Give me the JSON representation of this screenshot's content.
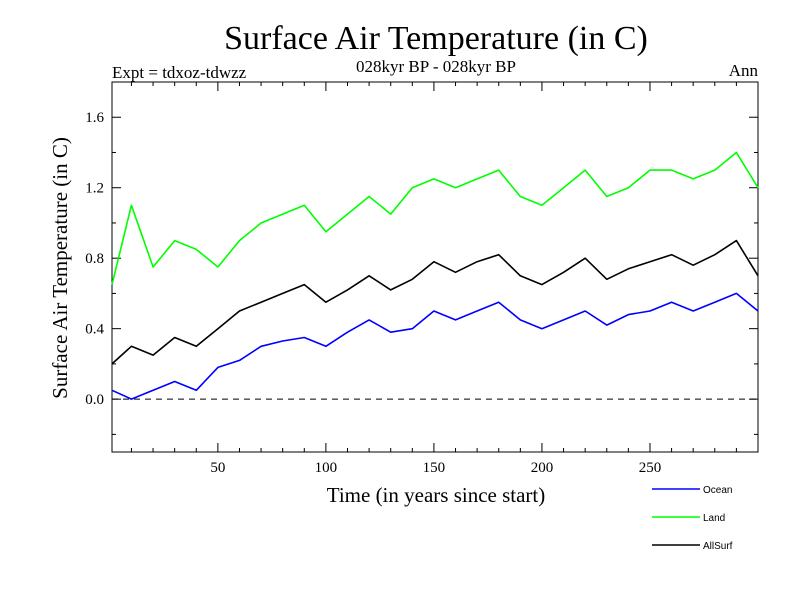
{
  "chart_data": {
    "type": "line",
    "title": "Surface Air Temperature (in C)",
    "experiment_label": "Expt = tdxoz-tdwzz",
    "period_label": "028kyr BP - 028kyr BP",
    "season_label": "Ann",
    "xlabel": "Time (in years since start)",
    "ylabel": "Surface Air Temperature (in C)",
    "xlim": [
      1,
      300
    ],
    "ylim": [
      -0.3,
      1.8
    ],
    "x_ticks": [
      50,
      100,
      150,
      200,
      250
    ],
    "y_ticks": [
      0.0,
      0.4,
      0.8,
      1.2,
      1.6
    ],
    "y_tick_labels": [
      "0.0",
      "0.4",
      "0.8",
      "1.2",
      "1.6"
    ],
    "zero_line": 0.0,
    "x": [
      1,
      10,
      20,
      30,
      40,
      50,
      60,
      70,
      80,
      90,
      100,
      110,
      120,
      130,
      140,
      150,
      160,
      170,
      180,
      190,
      200,
      210,
      220,
      230,
      240,
      250,
      260,
      270,
      280,
      290,
      300
    ],
    "series": [
      {
        "name": "Ocean",
        "color": "#0000ff",
        "values": [
          0.05,
          0.0,
          0.05,
          0.1,
          0.05,
          0.18,
          0.22,
          0.3,
          0.33,
          0.35,
          0.3,
          0.38,
          0.45,
          0.38,
          0.4,
          0.5,
          0.45,
          0.5,
          0.55,
          0.45,
          0.4,
          0.45,
          0.5,
          0.42,
          0.48,
          0.5,
          0.55,
          0.5,
          0.55,
          0.6,
          0.5
        ]
      },
      {
        "name": "Land",
        "color": "#00ff00",
        "values": [
          0.65,
          1.1,
          0.75,
          0.9,
          0.85,
          0.75,
          0.9,
          1.0,
          1.05,
          1.1,
          0.95,
          1.05,
          1.15,
          1.05,
          1.2,
          1.25,
          1.2,
          1.25,
          1.3,
          1.15,
          1.1,
          1.2,
          1.3,
          1.15,
          1.2,
          1.3,
          1.3,
          1.25,
          1.3,
          1.4,
          1.2
        ]
      },
      {
        "name": "AllSurf",
        "color": "#000000",
        "values": [
          0.2,
          0.3,
          0.25,
          0.35,
          0.3,
          0.4,
          0.5,
          0.55,
          0.6,
          0.65,
          0.55,
          0.62,
          0.7,
          0.62,
          0.68,
          0.78,
          0.72,
          0.78,
          0.82,
          0.7,
          0.65,
          0.72,
          0.8,
          0.68,
          0.74,
          0.78,
          0.82,
          0.76,
          0.82,
          0.9,
          0.7
        ]
      }
    ],
    "legend_position": "bottom-right",
    "grid": false
  }
}
